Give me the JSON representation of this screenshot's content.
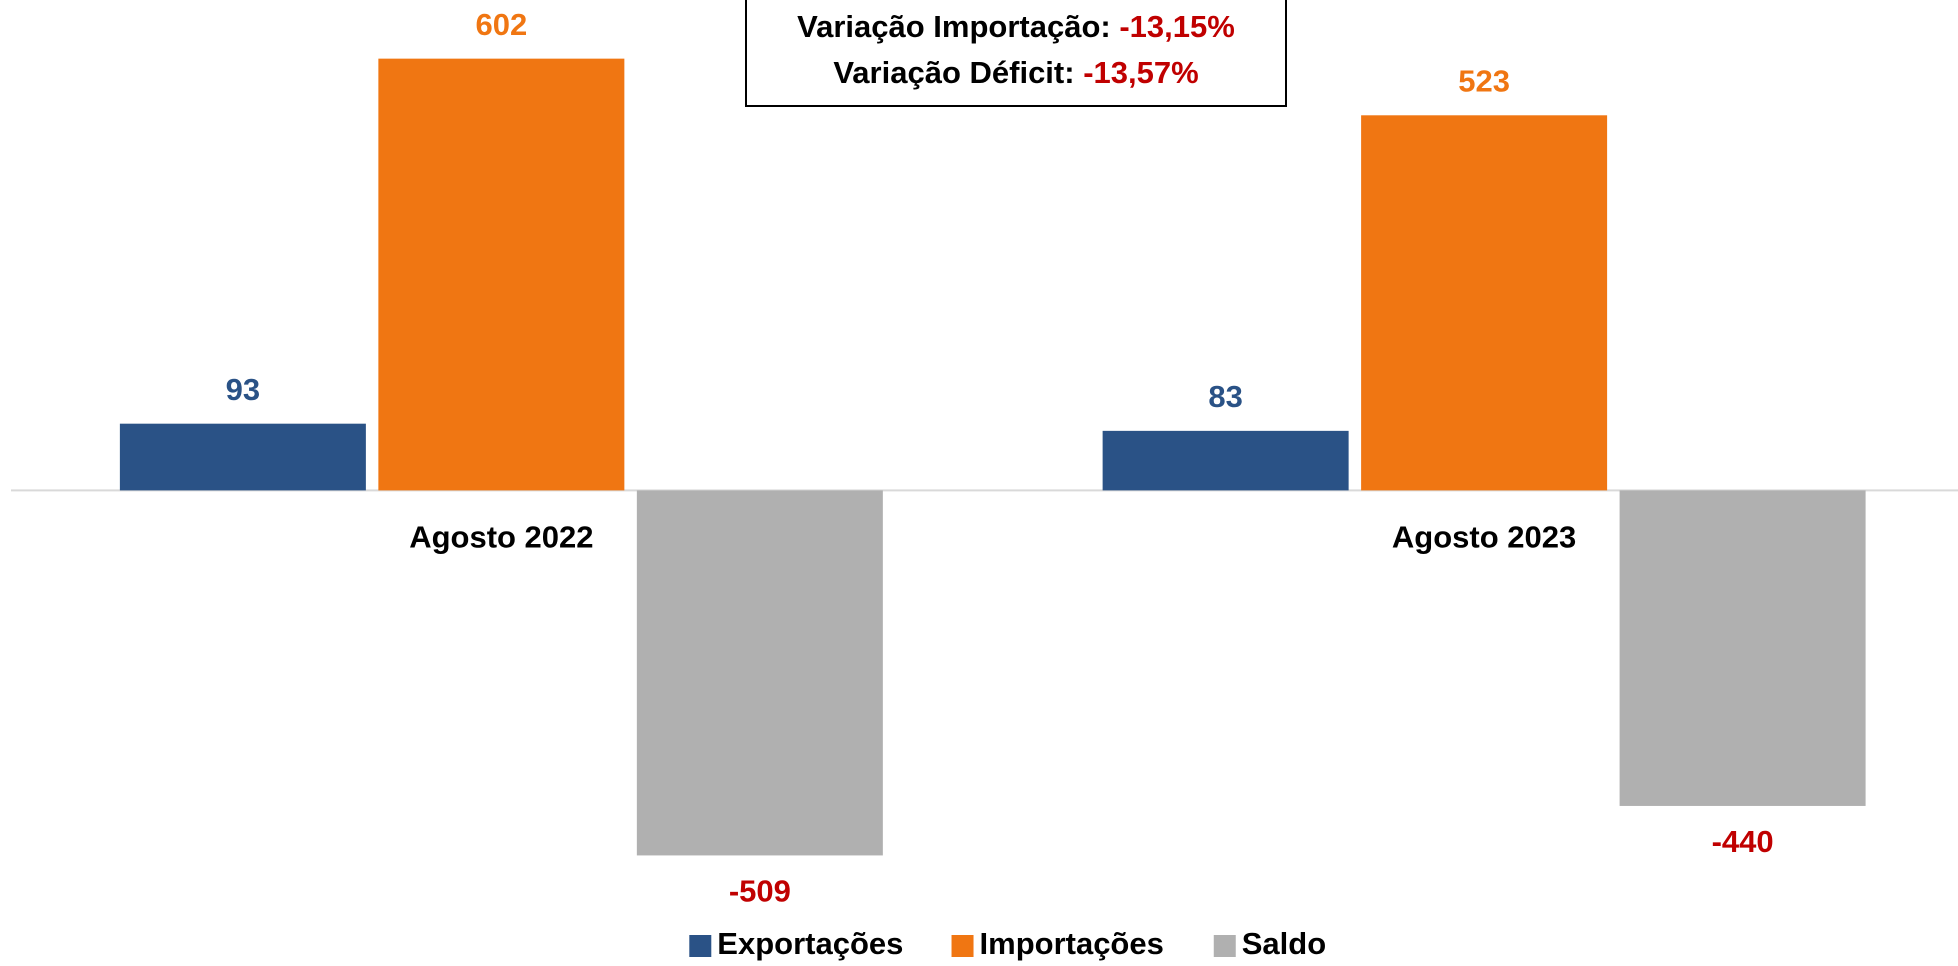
{
  "chart_data": {
    "type": "bar",
    "categories": [
      "Agosto 2022",
      "Agosto 2023"
    ],
    "series": [
      {
        "name": "Exportações",
        "color": "#2a5286",
        "label_color": "#2a5286",
        "values": [
          93,
          83
        ]
      },
      {
        "name": "Importações",
        "color": "#f07612",
        "label_color": "#f07612",
        "values": [
          602,
          523
        ]
      },
      {
        "name": "Saldo",
        "color": "#b0b0b0",
        "label_color": "#c00000",
        "values": [
          -509,
          -440
        ]
      }
    ],
    "ylim": [
      -560,
      680
    ],
    "annotations": [
      {
        "label": "Variação Importação:",
        "value": "-13,15%"
      },
      {
        "label": "Variação Déficit:",
        "value": "-13,57%"
      }
    ],
    "legend": "bottom"
  }
}
